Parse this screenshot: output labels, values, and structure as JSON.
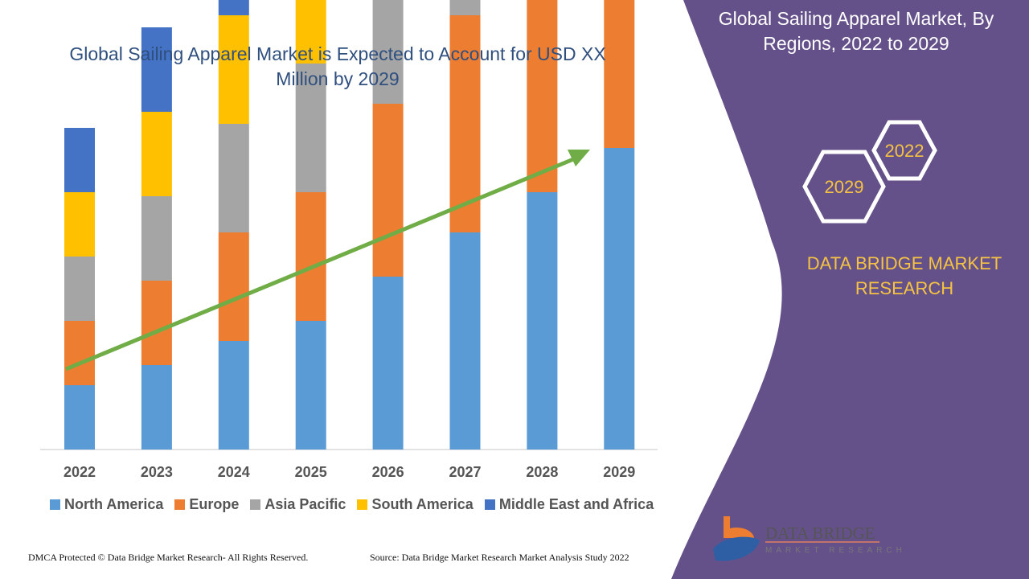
{
  "header": {
    "title": "Global Sailing Apparel Market is Expected to Account for USD XX Million by 2029"
  },
  "side_panel": {
    "title": "Global Sailing Apparel Market, By Regions, 2022 to 2029",
    "hex_labels": [
      "2022",
      "2029"
    ],
    "brand": "DATA BRIDGE MARKET RESEARCH",
    "logo_text": "DATA BRIDGE",
    "logo_subtext": "MARKET RESEARCH",
    "color": "#65518a"
  },
  "footer": {
    "left": "DMCA Protected © Data Bridge Market Research- All Rights Reserved.",
    "right": "Source: Data Bridge Market Research Market Analysis Study 2022"
  },
  "chart_data": {
    "type": "bar",
    "stacked": true,
    "title": "",
    "categories": [
      "2022",
      "2023",
      "2024",
      "2025",
      "2026",
      "2027",
      "2028",
      "2029"
    ],
    "series": [
      {
        "name": "North America",
        "color": "#5b9bd5",
        "values": [
          16,
          21,
          27,
          32,
          43,
          54,
          64,
          75
        ]
      },
      {
        "name": "Europe",
        "color": "#ed7d31",
        "values": [
          16,
          21,
          27,
          32,
          43,
          54,
          64,
          75
        ]
      },
      {
        "name": "Asia Pacific",
        "color": "#a5a5a5",
        "values": [
          16,
          21,
          27,
          32,
          43,
          54,
          64,
          75
        ]
      },
      {
        "name": "South America",
        "color": "#ffc000",
        "values": [
          16,
          21,
          27,
          32,
          43,
          54,
          64,
          75
        ]
      },
      {
        "name": "Middle East and Africa",
        "color": "#4472c4",
        "values": [
          16,
          21,
          27,
          32,
          43,
          54,
          64,
          75
        ]
      }
    ],
    "y_axis_shown": false,
    "grid": false,
    "legend_position": "bottom",
    "trend_arrow": {
      "color": "#70ad47"
    }
  }
}
